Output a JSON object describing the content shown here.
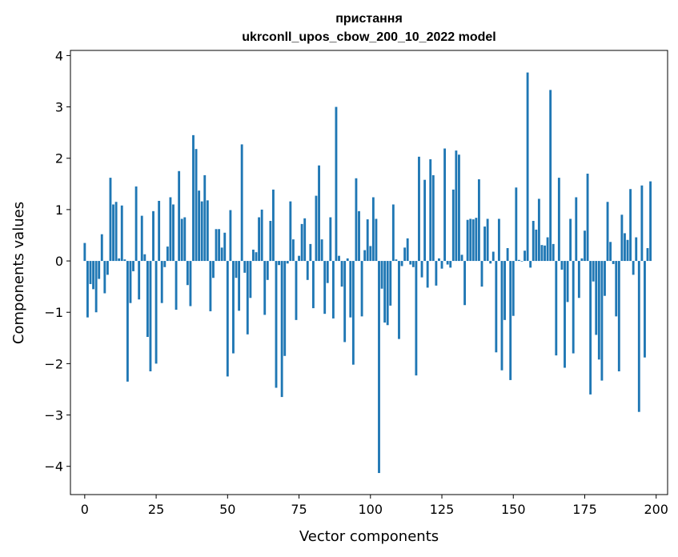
{
  "chart_data": {
    "type": "bar",
    "title_line1": "пристання",
    "title_line2": "ukrconll_upos_cbow_200_10_2022 model",
    "xlabel": "Vector components",
    "ylabel": "Components values",
    "xlim": [
      -5,
      204
    ],
    "ylim": [
      -4.55,
      4.1
    ],
    "xticks": [
      0,
      25,
      50,
      75,
      100,
      125,
      150,
      175,
      200
    ],
    "yticks": [
      -4,
      -3,
      -2,
      -1,
      0,
      1,
      2,
      3,
      4
    ],
    "xtick_labels": [
      "0",
      "25",
      "50",
      "75",
      "100",
      "125",
      "150",
      "175",
      "200"
    ],
    "ytick_labels": [
      "−4",
      "−3",
      "−2",
      "−1",
      "0",
      "1",
      "2",
      "3",
      "4"
    ],
    "bar_color": "#1f77b4",
    "values": [
      0.35,
      -1.1,
      -0.45,
      -0.55,
      -1.0,
      -0.35,
      0.52,
      -0.63,
      -0.27,
      1.62,
      1.1,
      1.15,
      0.05,
      1.08,
      0.03,
      -2.35,
      -0.82,
      -0.2,
      1.45,
      -0.75,
      0.88,
      0.13,
      -1.48,
      -2.15,
      0.97,
      -2.0,
      1.17,
      -0.82,
      -0.12,
      0.28,
      1.24,
      1.1,
      -0.95,
      1.75,
      0.82,
      0.85,
      -0.47,
      -0.88,
      2.45,
      2.18,
      1.37,
      1.16,
      1.67,
      1.18,
      -0.98,
      -0.33,
      0.62,
      0.62,
      0.26,
      0.55,
      -2.25,
      0.99,
      -1.8,
      -0.33,
      -0.97,
      2.27,
      -0.23,
      -1.43,
      -0.72,
      0.22,
      0.17,
      0.85,
      1.0,
      -1.05,
      -0.37,
      0.78,
      1.39,
      -2.47,
      -0.08,
      -2.65,
      -1.85,
      -0.05,
      1.16,
      0.42,
      -1.15,
      0.1,
      0.72,
      0.83,
      -0.37,
      0.33,
      -0.92,
      1.27,
      1.86,
      0.42,
      -1.03,
      -0.43,
      0.85,
      -1.12,
      3.0,
      0.1,
      -0.5,
      -1.58,
      0.05,
      -1.1,
      -2.02,
      1.61,
      0.97,
      -1.08,
      0.21,
      0.81,
      0.29,
      1.24,
      0.82,
      -4.13,
      -0.54,
      -1.2,
      -1.25,
      -0.87,
      1.1,
      0.03,
      -1.52,
      -0.1,
      0.26,
      0.44,
      -0.07,
      -0.12,
      -2.23,
      2.03,
      -0.32,
      1.58,
      -0.52,
      1.98,
      1.67,
      -0.48,
      0.05,
      -0.15,
      2.19,
      -0.07,
      -0.13,
      1.39,
      2.15,
      2.07,
      0.12,
      -0.86,
      0.8,
      0.82,
      0.81,
      0.84,
      1.59,
      -0.5,
      0.67,
      0.82,
      -0.05,
      0.18,
      -1.78,
      0.82,
      -2.13,
      -1.15,
      0.25,
      -2.32,
      -1.07,
      1.43,
      0.02,
      -0.01,
      0.2,
      3.67,
      -0.13,
      0.78,
      0.61,
      1.21,
      0.31,
      0.3,
      0.46,
      3.33,
      0.33,
      -1.84,
      1.62,
      -0.17,
      -2.08,
      -0.8,
      0.82,
      -1.8,
      1.24,
      -0.72,
      0.05,
      0.59,
      1.7,
      -2.6,
      -0.4,
      -1.44,
      -1.92,
      -2.33,
      -0.68,
      1.15,
      0.37,
      -0.06,
      -1.08,
      -2.15,
      0.9,
      0.54,
      0.41,
      1.4,
      -0.27,
      0.46,
      -2.94,
      1.47,
      -1.88,
      0.25,
      1.55
    ]
  }
}
